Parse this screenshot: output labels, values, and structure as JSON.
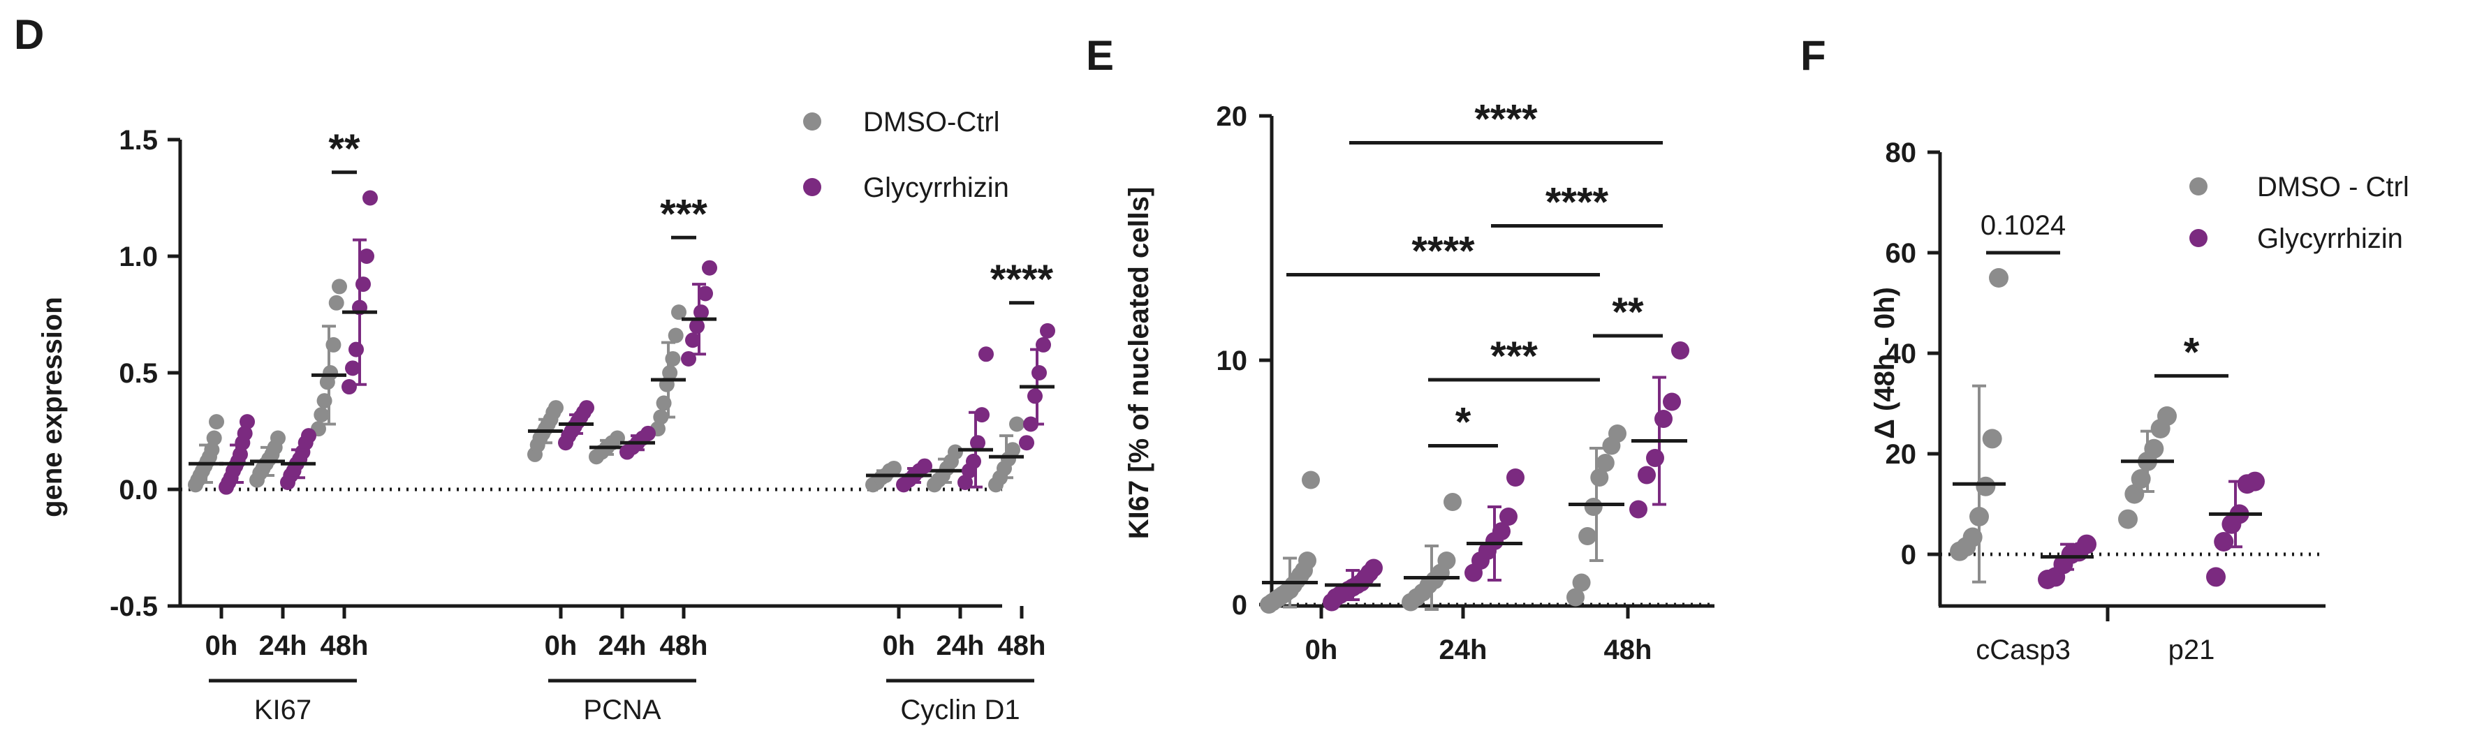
{
  "colors": {
    "ctrl": "#8c8c8c",
    "glyc": "#7b2a80",
    "ink": "#1a1a1a"
  },
  "chart_data": [
    {
      "panel": "D",
      "type": "scatter",
      "ylabel": "gene expression",
      "ylim": [
        -0.5,
        1.5
      ],
      "yticks": [
        "-0.5",
        "0.0",
        "0.5",
        "1.0",
        "1.5"
      ],
      "reference_line": 0,
      "legend": {
        "position": "top-right",
        "entries": [
          "DMSO-Ctrl",
          "Glycyrrhizin"
        ]
      },
      "groups": [
        {
          "label": "KI67",
          "timepoints": [
            "0h",
            "24h",
            "48h"
          ]
        },
        {
          "label": "PCNA",
          "timepoints": [
            "0h",
            "24h",
            "48h"
          ]
        },
        {
          "label": "Cyclin D1",
          "timepoints": [
            "0h",
            "24h",
            "48h"
          ]
        }
      ],
      "series": [
        {
          "name": "DMSO-Ctrl",
          "points": [
            {
              "group": 0,
              "time": 0,
              "mean": 0.11,
              "sd": 0.08,
              "values": [
                0.02,
                0.04,
                0.06,
                0.08,
                0.1,
                0.12,
                0.14,
                0.17,
                0.22,
                0.29
              ]
            },
            {
              "group": 0,
              "time": 1,
              "mean": 0.12,
              "sd": 0.06,
              "values": [
                0.04,
                0.07,
                0.09,
                0.11,
                0.13,
                0.15,
                0.18,
                0.22
              ]
            },
            {
              "group": 0,
              "time": 2,
              "mean": 0.49,
              "sd": 0.21,
              "values": [
                0.26,
                0.32,
                0.38,
                0.46,
                0.5,
                0.62,
                0.8,
                0.87
              ]
            },
            {
              "group": 1,
              "time": 0,
              "mean": 0.25,
              "sd": 0.05,
              "values": [
                0.15,
                0.19,
                0.22,
                0.24,
                0.26,
                0.28,
                0.3,
                0.33,
                0.35
              ]
            },
            {
              "group": 1,
              "time": 1,
              "mean": 0.18,
              "sd": 0.03,
              "values": [
                0.14,
                0.16,
                0.18,
                0.2,
                0.22
              ]
            },
            {
              "group": 1,
              "time": 2,
              "mean": 0.47,
              "sd": 0.16,
              "values": [
                0.26,
                0.31,
                0.37,
                0.45,
                0.5,
                0.56,
                0.66,
                0.76
              ]
            },
            {
              "group": 2,
              "time": 0,
              "mean": 0.06,
              "sd": 0.02,
              "values": [
                0.02,
                0.03,
                0.05,
                0.06,
                0.08,
                0.09
              ]
            },
            {
              "group": 2,
              "time": 1,
              "mean": 0.08,
              "sd": 0.05,
              "values": [
                0.02,
                0.04,
                0.06,
                0.09,
                0.12,
                0.16
              ]
            },
            {
              "group": 2,
              "time": 2,
              "mean": 0.14,
              "sd": 0.09,
              "values": [
                0.02,
                0.05,
                0.09,
                0.13,
                0.17,
                0.28
              ]
            }
          ]
        },
        {
          "name": "Glycyrrhizin",
          "points": [
            {
              "group": 0,
              "time": 0,
              "mean": 0.11,
              "sd": 0.08,
              "values": [
                0.01,
                0.03,
                0.05,
                0.08,
                0.1,
                0.12,
                0.15,
                0.2,
                0.24,
                0.29
              ]
            },
            {
              "group": 0,
              "time": 1,
              "mean": 0.11,
              "sd": 0.06,
              "values": [
                0.03,
                0.06,
                0.08,
                0.11,
                0.13,
                0.16,
                0.2,
                0.23
              ]
            },
            {
              "group": 0,
              "time": 2,
              "mean": 0.76,
              "sd": 0.31,
              "values": [
                0.44,
                0.52,
                0.6,
                0.78,
                0.88,
                1.0,
                1.25
              ]
            },
            {
              "group": 1,
              "time": 0,
              "mean": 0.28,
              "sd": 0.04,
              "values": [
                0.2,
                0.23,
                0.25,
                0.27,
                0.29,
                0.31,
                0.33,
                0.35
              ]
            },
            {
              "group": 1,
              "time": 1,
              "mean": 0.2,
              "sd": 0.03,
              "values": [
                0.16,
                0.18,
                0.2,
                0.22,
                0.24
              ]
            },
            {
              "group": 1,
              "time": 2,
              "mean": 0.73,
              "sd": 0.15,
              "values": [
                0.56,
                0.64,
                0.7,
                0.76,
                0.84,
                0.95
              ]
            },
            {
              "group": 2,
              "time": 0,
              "mean": 0.06,
              "sd": 0.03,
              "values": [
                0.02,
                0.04,
                0.06,
                0.08,
                0.1
              ]
            },
            {
              "group": 2,
              "time": 1,
              "mean": 0.17,
              "sd": 0.16,
              "values": [
                0.03,
                0.08,
                0.12,
                0.2,
                0.32,
                0.58
              ]
            },
            {
              "group": 2,
              "time": 2,
              "mean": 0.44,
              "sd": 0.16,
              "values": [
                0.2,
                0.28,
                0.4,
                0.5,
                0.62,
                0.68
              ]
            }
          ]
        }
      ],
      "significance": [
        {
          "group": 0,
          "time": 2,
          "label": "**",
          "y": 1.36
        },
        {
          "group": 1,
          "time": 2,
          "label": "***",
          "y": 1.08
        },
        {
          "group": 2,
          "time": 2,
          "label": "****",
          "y": 0.8
        }
      ]
    },
    {
      "panel": "E",
      "type": "scatter",
      "ylabel": "KI67 [% of nucleated cells]",
      "ylim": [
        0,
        20
      ],
      "yticks": [
        "0",
        "10",
        "20"
      ],
      "categories": [
        "0h",
        "24h",
        "48h"
      ],
      "series": [
        {
          "name": "DMSO-Ctrl",
          "points": [
            {
              "cat": 0,
              "mean": 0.9,
              "sd": 1.0,
              "values": [
                0,
                0.1,
                0.2,
                0.3,
                0.4,
                0.5,
                0.6,
                0.8,
                1.0,
                1.2,
                1.4,
                1.8,
                5.1
              ]
            },
            {
              "cat": 1,
              "mean": 1.1,
              "sd": 1.3,
              "values": [
                0.1,
                0.3,
                0.5,
                0.8,
                1.0,
                1.3,
                1.8,
                4.2
              ]
            },
            {
              "cat": 2,
              "mean": 4.1,
              "sd": 2.3,
              "values": [
                0.3,
                0.9,
                2.8,
                4.0,
                5.2,
                5.8,
                6.5,
                7.0
              ]
            }
          ]
        },
        {
          "name": "Glycyrrhizin",
          "points": [
            {
              "cat": 0,
              "mean": 0.8,
              "sd": 0.6,
              "values": [
                0.1,
                0.3,
                0.4,
                0.5,
                0.6,
                0.7,
                0.8,
                0.9,
                1.1,
                1.3,
                1.5
              ]
            },
            {
              "cat": 1,
              "mean": 2.5,
              "sd": 1.5,
              "values": [
                1.3,
                1.8,
                2.2,
                2.6,
                3.0,
                3.6,
                5.2
              ]
            },
            {
              "cat": 2,
              "mean": 6.7,
              "sd": 2.6,
              "values": [
                3.9,
                5.3,
                6.0,
                7.6,
                8.3,
                10.4
              ]
            }
          ]
        }
      ],
      "significance": [
        {
          "from": [
            1,
            0
          ],
          "to": [
            1,
            1
          ],
          "label": "*",
          "y": 6.5
        },
        {
          "from": [
            1,
            0
          ],
          "to": [
            2,
            0
          ],
          "label": "***",
          "y": 9.2
        },
        {
          "from": [
            2,
            0
          ],
          "to": [
            2,
            1
          ],
          "label": "**",
          "y": 11.0
        },
        {
          "from": [
            0,
            0
          ],
          "to": [
            2,
            0
          ],
          "label": "****",
          "y": 13.5
        },
        {
          "from": [
            1,
            1
          ],
          "to": [
            2,
            1
          ],
          "label": "****",
          "y": 15.5
        },
        {
          "from": [
            0,
            1
          ],
          "to": [
            2,
            1
          ],
          "label": "****",
          "y": 18.9
        }
      ]
    },
    {
      "panel": "F",
      "type": "scatter",
      "ylabel": "Δ (48h - 0h)",
      "ylim": [
        -10,
        80
      ],
      "yticks": [
        "0",
        "20",
        "40",
        "60",
        "80"
      ],
      "reference_line": 0,
      "categories": [
        "cCasp3",
        "p21"
      ],
      "legend": {
        "position": "top-right",
        "entries": [
          "DMSO - Ctrl",
          "Glycyrrhizin"
        ]
      },
      "series": [
        {
          "name": "DMSO - Ctrl",
          "points": [
            {
              "cat": 0,
              "mean": 14,
              "sd": 19.5,
              "values": [
                0.6,
                1.5,
                3.4,
                7.5,
                13.5,
                23,
                55
              ]
            },
            {
              "cat": 1,
              "mean": 18.5,
              "sd": 6,
              "values": [
                7,
                12,
                15,
                18.5,
                21,
                25,
                27.5
              ]
            }
          ]
        },
        {
          "name": "Glycyrrhizin",
          "points": [
            {
              "cat": 0,
              "mean": -0.5,
              "sd": 2.5,
              "values": [
                -5,
                -4.5,
                -2,
                0,
                0.5,
                2
              ]
            },
            {
              "cat": 1,
              "mean": 8,
              "sd": 6.5,
              "values": [
                -4.5,
                2.5,
                6,
                8,
                14,
                14.5
              ]
            }
          ]
        }
      ],
      "significance": [
        {
          "cat": 0,
          "label": "0.1024",
          "y": 60
        },
        {
          "cat": 1,
          "label": "*",
          "y": 35.5
        }
      ]
    }
  ]
}
